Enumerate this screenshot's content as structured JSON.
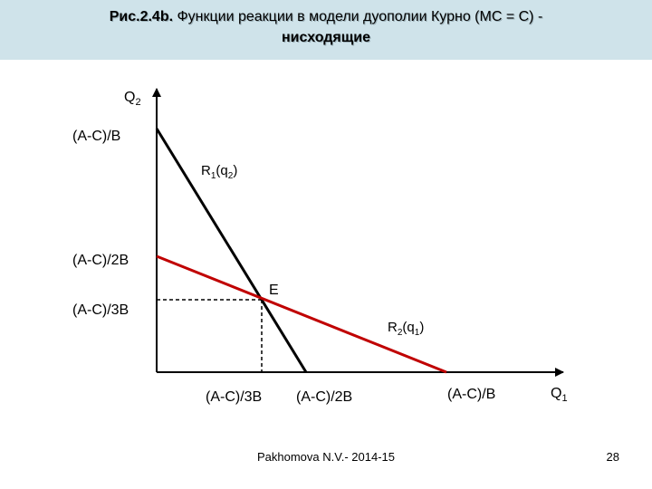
{
  "title": {
    "fig_ref": "Рис.2.4b.",
    "line1_rest": " Функции реакции в модели дуополии Курно  (MC = C) -",
    "line2": "нисходящие"
  },
  "axes": {
    "y_label": "Q",
    "y_sub": "2",
    "x_label": "Q",
    "x_sub": "1"
  },
  "y_ticks": [
    "(A-C)/B",
    "(A-C)/2B",
    "(A-C)/3B"
  ],
  "x_ticks": [
    "(A-C)/3B",
    "(A-C)/2B",
    "(A-C)/B"
  ],
  "curves": {
    "r1": {
      "name": "R",
      "sub": "1",
      "arg": "(q",
      "arg_sub": "2",
      "close": ")",
      "color": "#000000"
    },
    "r2": {
      "name": "R",
      "sub": "2",
      "arg": "(q",
      "arg_sub": "1",
      "close": ")",
      "color": "#c00000"
    }
  },
  "equilibrium_label": "E",
  "footer": {
    "author": "Pakhomova N.V.- 2014-15",
    "page": "28"
  }
}
